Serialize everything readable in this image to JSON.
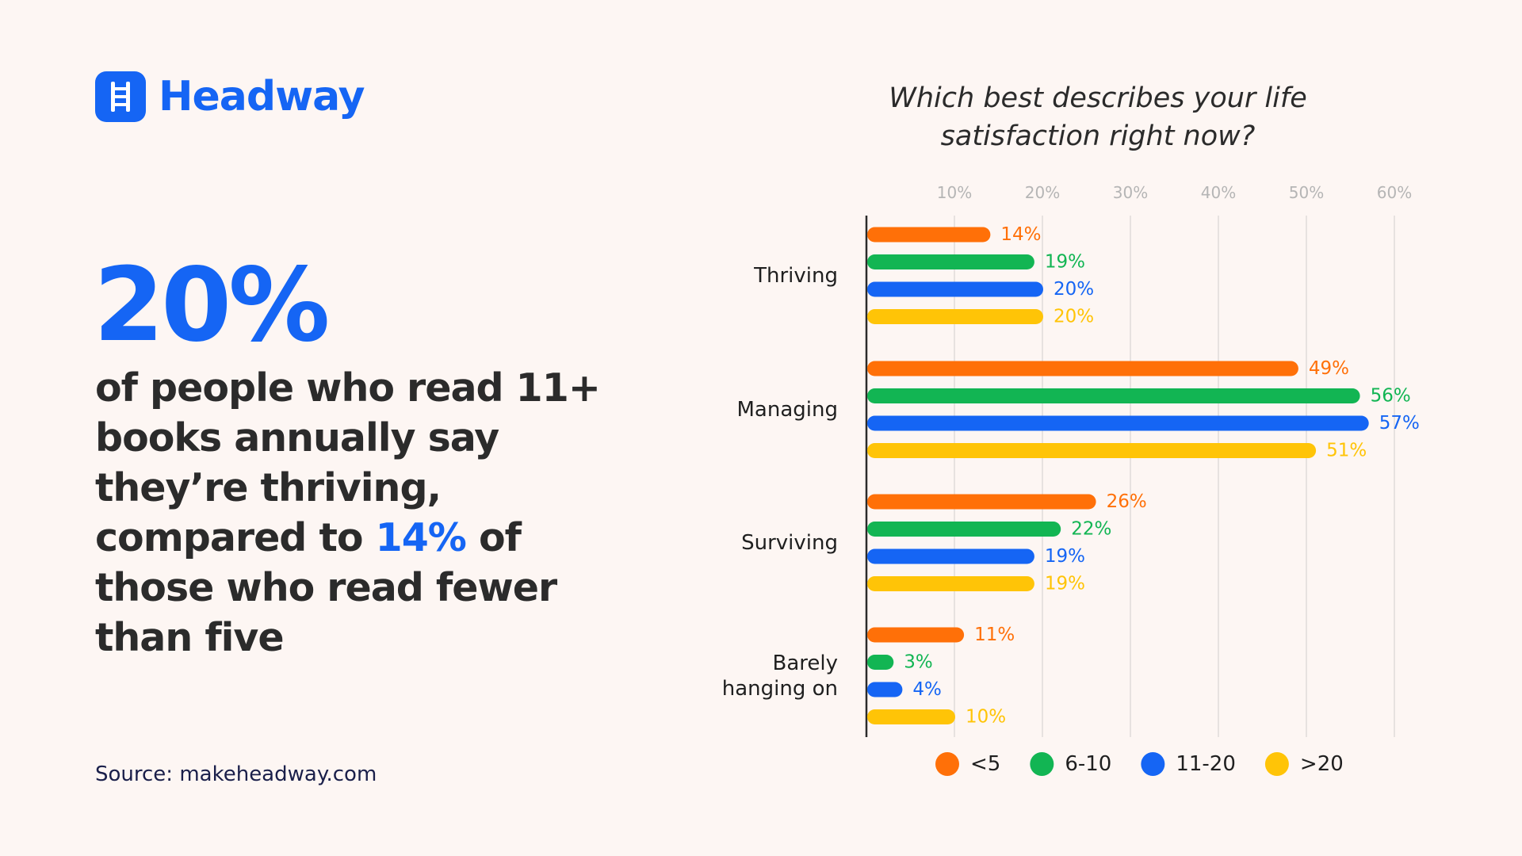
{
  "brand": {
    "name": "Headway",
    "logo_icon": "ladder-icon",
    "color": "#1565f4"
  },
  "headline": {
    "value": "20%"
  },
  "statement": {
    "part1": "of people who read 11+ books annually say they’re thriving, compared to ",
    "highlight": "14%",
    "part2": " of those who read fewer than five"
  },
  "source": "Source: makeheadway.com",
  "chart_data": {
    "type": "bar",
    "orientation": "horizontal",
    "title": "Which best describes your life satisfaction right now?",
    "categories": [
      "Thriving",
      "Managing",
      "Surviving",
      "Barely hanging on"
    ],
    "series": [
      {
        "name": "<5",
        "color": "#ff7008",
        "values": [
          14,
          49,
          26,
          11
        ]
      },
      {
        "name": "6-10",
        "color": "#12b553",
        "values": [
          19,
          56,
          22,
          3
        ]
      },
      {
        "name": "11-20",
        "color": "#1565f4",
        "values": [
          20,
          57,
          19,
          4
        ]
      },
      {
        "name": ">20",
        "color": "#ffc407",
        "values": [
          20,
          51,
          19,
          10
        ]
      }
    ],
    "value_suffix": "%",
    "xlim": [
      0,
      60
    ],
    "x_ticks": [
      10,
      20,
      30,
      40,
      50,
      60
    ],
    "x_tick_labels": [
      "10%",
      "20%",
      "30%",
      "40%",
      "50%",
      "60%"
    ],
    "grid": true,
    "legend_position": "bottom",
    "xlabel": "",
    "ylabel": ""
  }
}
